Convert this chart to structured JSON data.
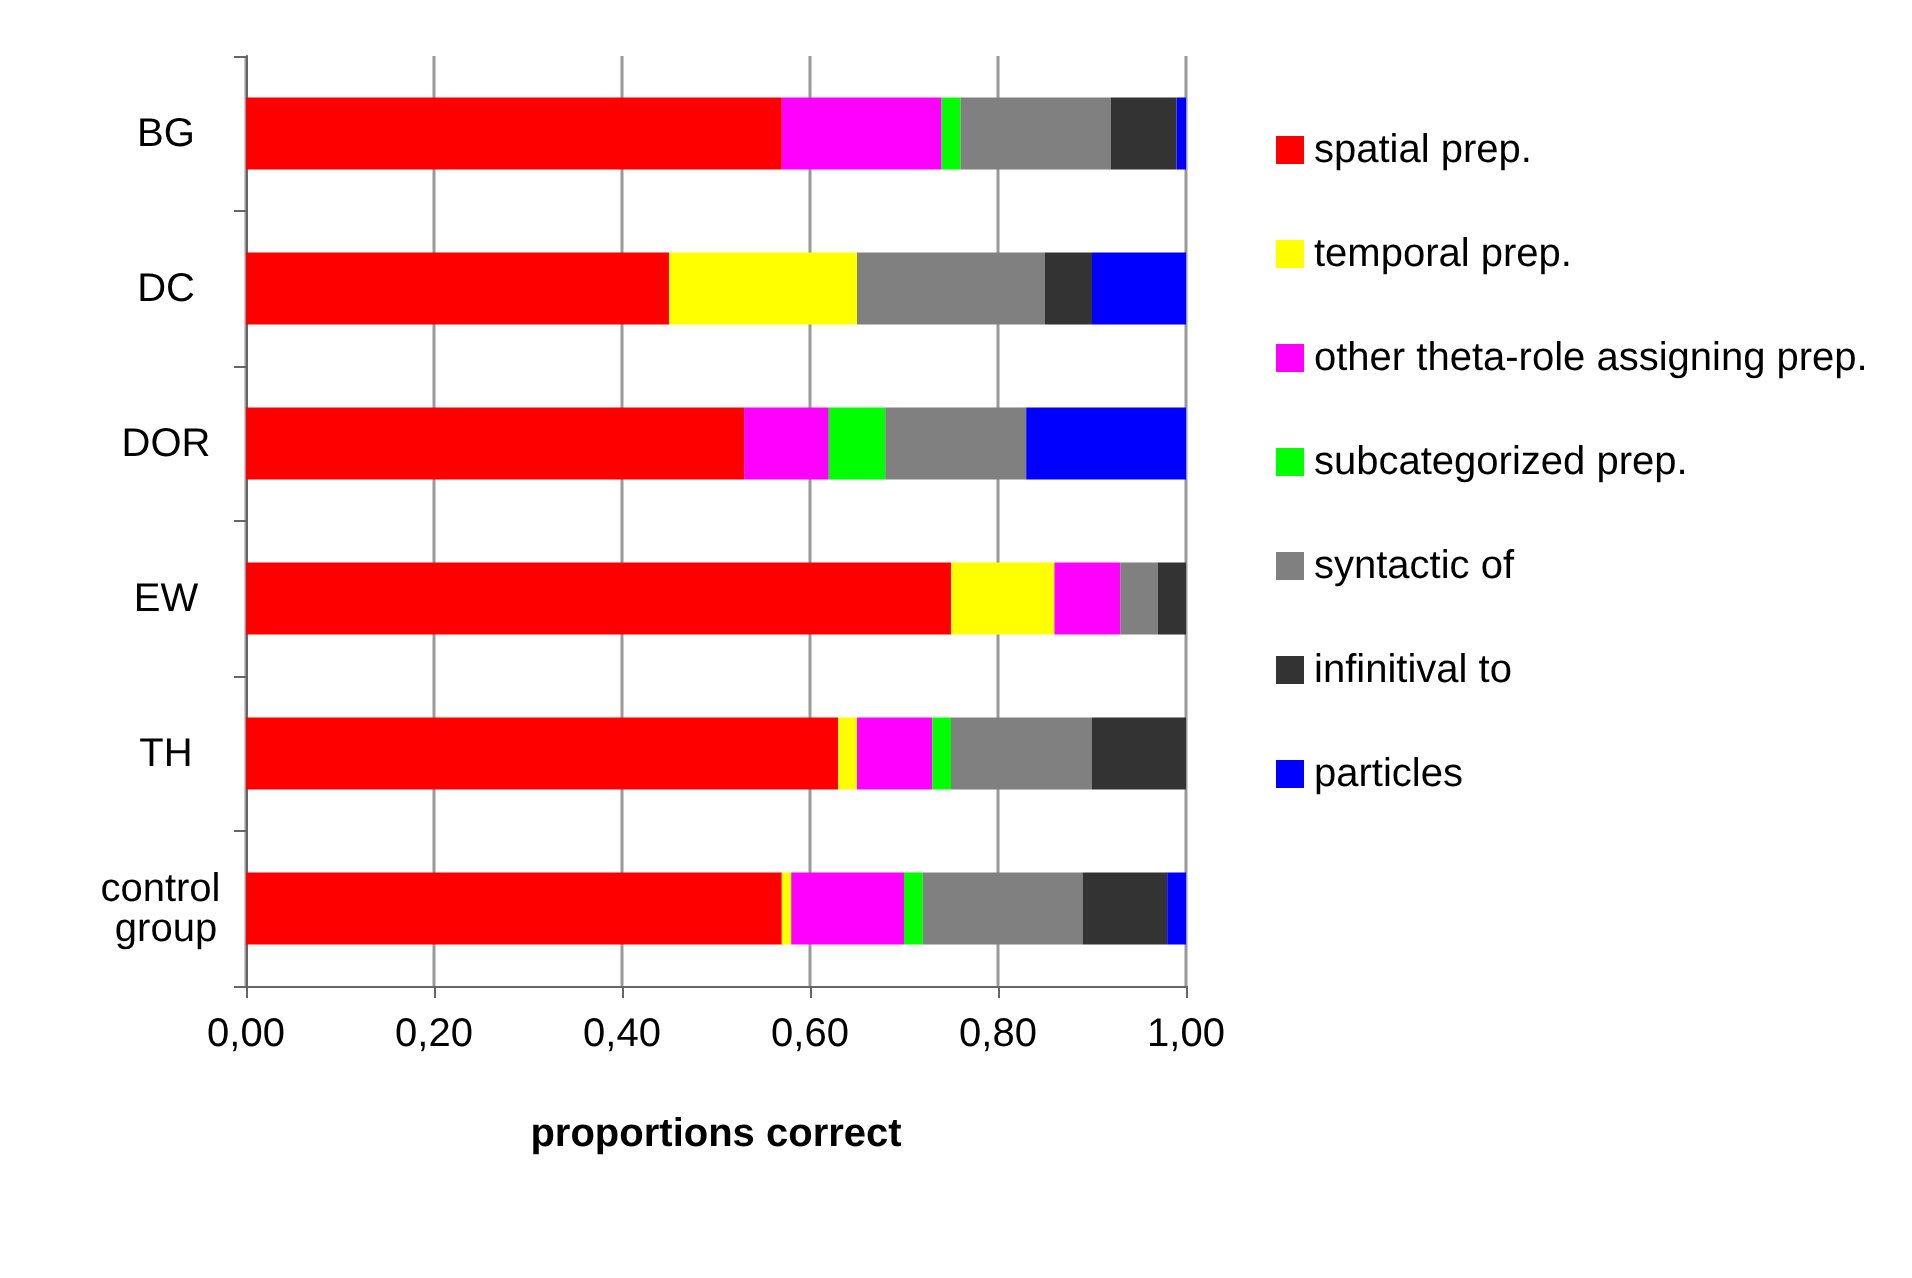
{
  "chart_data": {
    "type": "bar",
    "orientation": "horizontal",
    "stacked": true,
    "xlabel": "proportions correct",
    "categories": [
      "BG",
      "DC",
      "DOR",
      "EW",
      "TH",
      "control group"
    ],
    "series": [
      {
        "name": "spatial prep.",
        "color": "#ff0000",
        "values": [
          0.57,
          0.45,
          0.53,
          0.75,
          0.63,
          0.57
        ]
      },
      {
        "name": "temporal prep.",
        "color": "#ffff00",
        "values": [
          0,
          0.2,
          0,
          0.11,
          0.02,
          0.01
        ]
      },
      {
        "name": "other theta-role assigning prep.",
        "color": "#ff00ff",
        "values": [
          0.17,
          0,
          0.09,
          0.07,
          0.08,
          0.12
        ]
      },
      {
        "name": "subcategorized prep.",
        "color": "#00ff00",
        "values": [
          0.02,
          0,
          0.06,
          0,
          0.02,
          0.02
        ]
      },
      {
        "name": "syntactic of",
        "color": "#808080",
        "values": [
          0.16,
          0.2,
          0.15,
          0.04,
          0.15,
          0.17
        ]
      },
      {
        "name": "infinitival to",
        "color": "#333333",
        "values": [
          0.07,
          0.05,
          0,
          0.03,
          0.1,
          0.09
        ]
      },
      {
        "name": "particles",
        "color": "#0000ff",
        "values": [
          0.01,
          0.1,
          0.17,
          0,
          0,
          0.02
        ]
      }
    ],
    "xlim": [
      0,
      1
    ],
    "xticks": [
      {
        "value": 0,
        "label": "0,00"
      },
      {
        "value": 0.2,
        "label": "0,20"
      },
      {
        "value": 0.4,
        "label": "0,40"
      },
      {
        "value": 0.6,
        "label": "0,60"
      },
      {
        "value": 0.8,
        "label": "0,80"
      },
      {
        "value": 1,
        "label": "1,00"
      }
    ],
    "grid": "x",
    "legend": "right"
  }
}
